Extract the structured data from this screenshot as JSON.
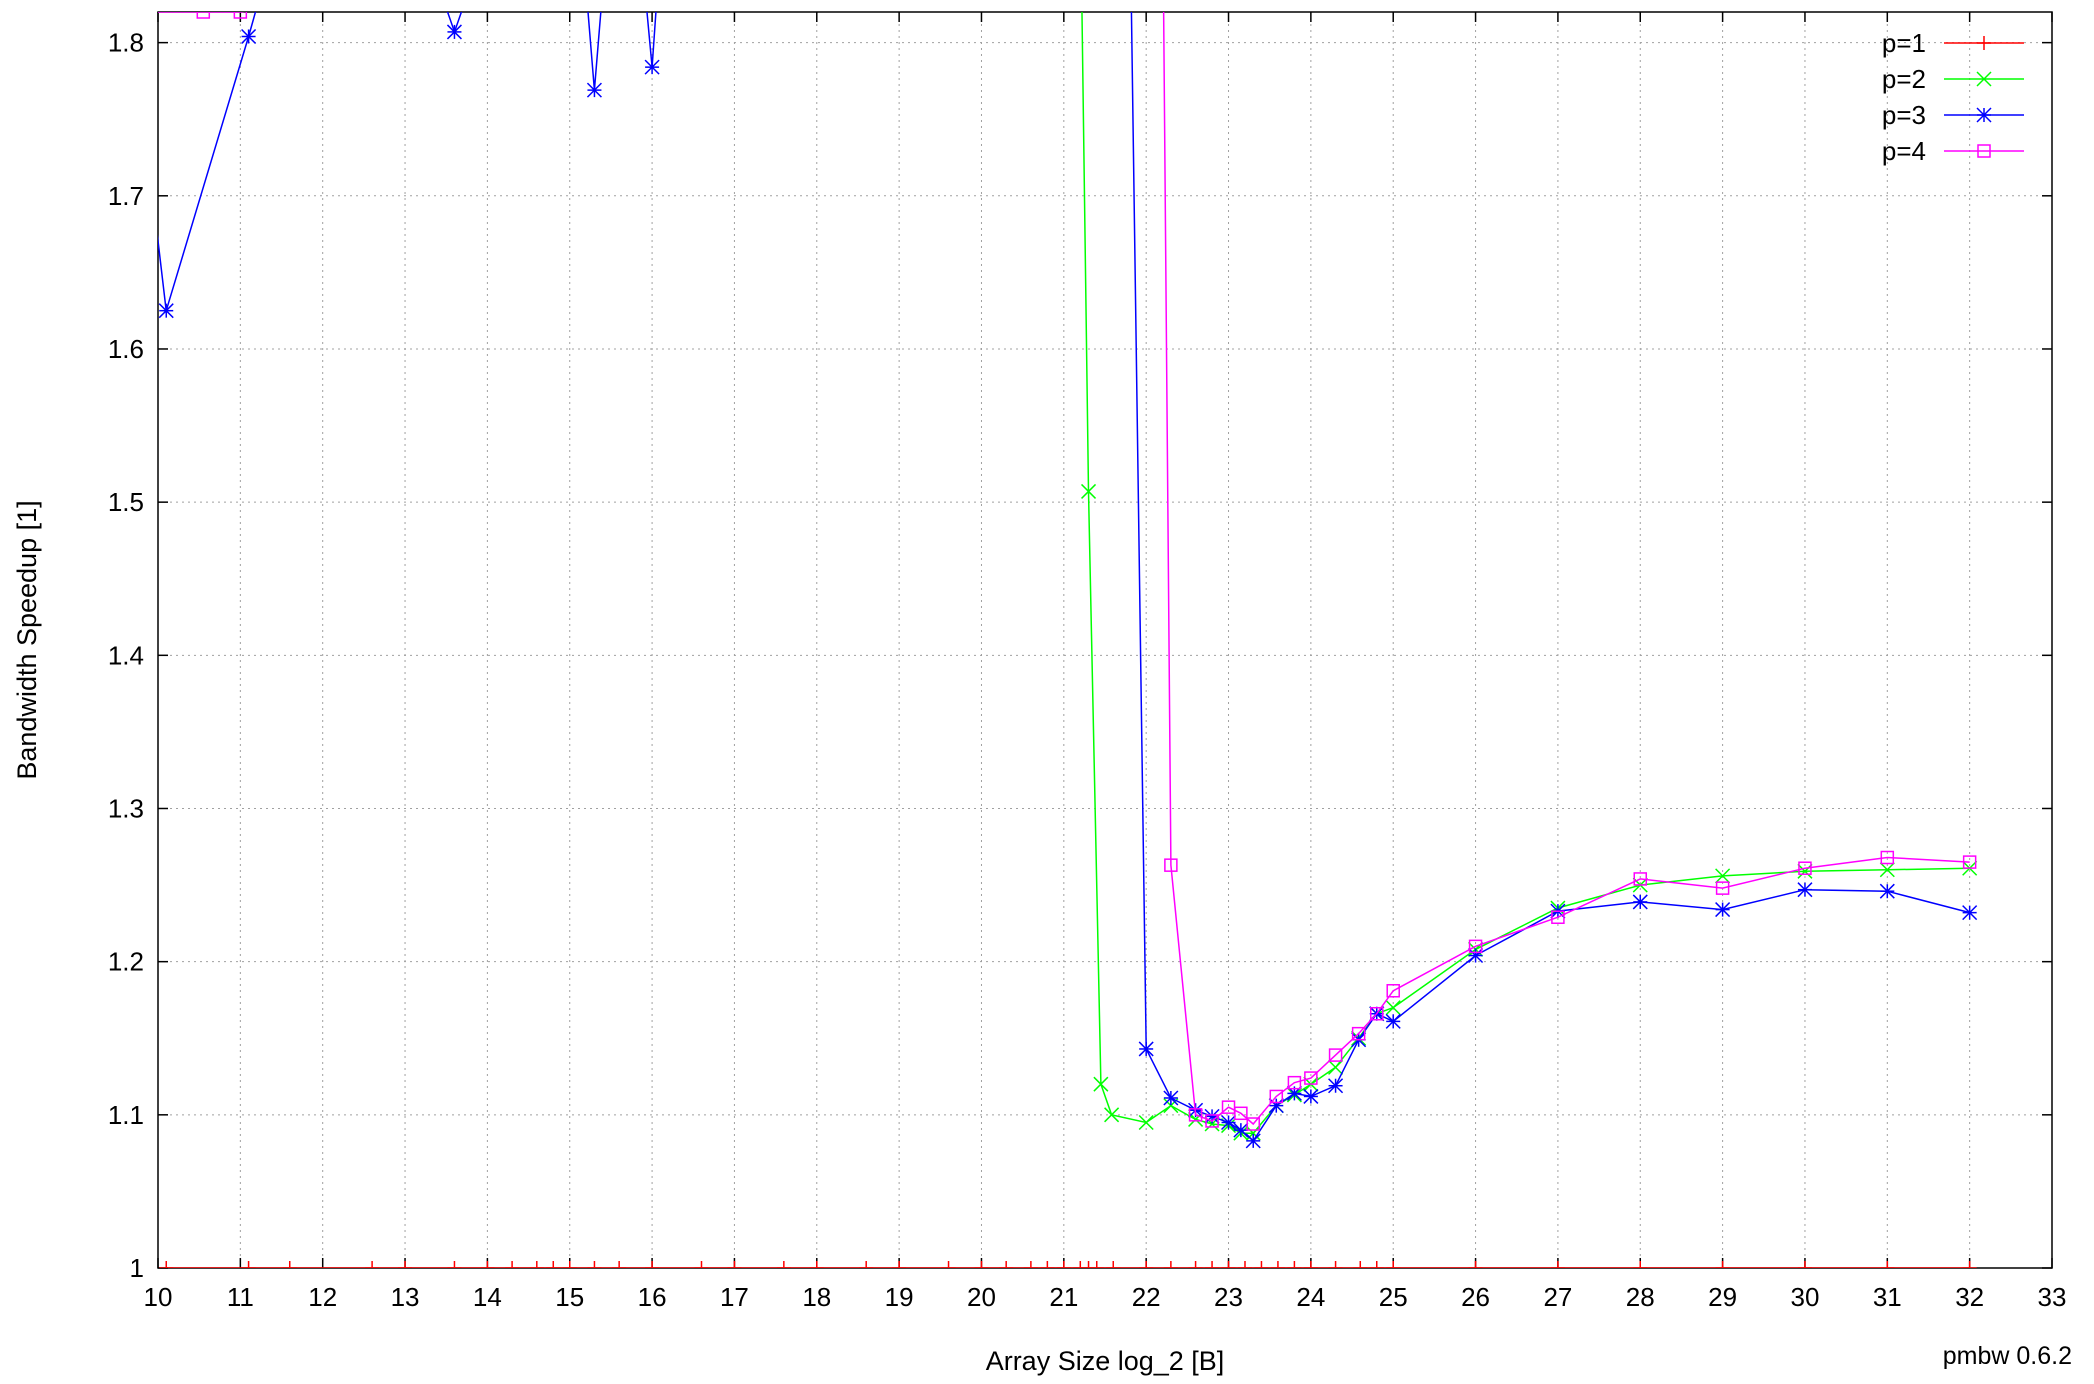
{
  "chart_data": {
    "type": "line",
    "title": "",
    "xlabel": "Array Size log_2 [B]",
    "ylabel": "Bandwidth Speedup [1]",
    "xlim": [
      10,
      33
    ],
    "ylim": [
      1,
      1.82
    ],
    "grid": true,
    "legend_placement": "top-right",
    "x_ticks": [
      10,
      11,
      12,
      13,
      14,
      15,
      16,
      17,
      18,
      19,
      20,
      21,
      22,
      23,
      24,
      25,
      26,
      27,
      28,
      29,
      30,
      31,
      32,
      33
    ],
    "y_ticks": [
      1,
      1.1,
      1.2,
      1.3,
      1.4,
      1.5,
      1.6,
      1.7,
      1.8
    ],
    "series": [
      {
        "name": "p=1",
        "color": "#ff0000",
        "marker": "plus",
        "x": [
          10.1,
          11.1,
          11.6,
          12.6,
          13.0,
          13.6,
          14.0,
          14.3,
          14.6,
          14.8,
          15.0,
          15.3,
          15.6,
          16.0,
          16.6,
          17.0,
          17.6,
          18.0,
          18.6,
          19.0,
          19.6,
          20.0,
          20.3,
          20.6,
          20.8,
          21.0,
          21.2,
          21.3,
          21.4,
          21.6,
          22.0,
          22.3,
          22.6,
          22.8,
          23.0,
          23.2,
          23.4,
          23.6,
          23.8,
          24.0,
          24.3,
          24.6,
          24.8,
          25.0,
          26.0,
          27.0,
          28.0,
          29.0,
          30.0,
          31.0,
          32.0
        ],
        "y": [
          1,
          1,
          1,
          1,
          1,
          1,
          1,
          1,
          1,
          1,
          1,
          1,
          1,
          1,
          1,
          1,
          1,
          1,
          1,
          1,
          1,
          1,
          1,
          1,
          1,
          1,
          1,
          1,
          1,
          1,
          1,
          1,
          1,
          1,
          1,
          1,
          1,
          1,
          1,
          1,
          1,
          1,
          1,
          1,
          1,
          1,
          1,
          1,
          1,
          1,
          1
        ]
      },
      {
        "name": "p=2",
        "color": "#00ff00",
        "marker": "cross",
        "x": [
          21.2,
          21.3,
          21.45,
          21.58,
          22.0,
          22.3,
          22.6,
          22.8,
          23.0,
          23.15,
          23.3,
          23.58,
          23.8,
          24.0,
          24.3,
          24.58,
          24.8,
          25.0,
          26.0,
          27.0,
          28.0,
          29.0,
          30.0,
          31.0,
          32.0
        ],
        "y": [
          1.9,
          1.507,
          1.12,
          1.1,
          1.095,
          1.106,
          1.097,
          1.094,
          1.093,
          1.088,
          1.088,
          1.106,
          1.113,
          1.12,
          1.131,
          1.15,
          1.166,
          1.17,
          1.208,
          1.235,
          1.25,
          1.256,
          1.259,
          1.26,
          1.261
        ]
      },
      {
        "name": "p=3",
        "color": "#0000ff",
        "marker": "star",
        "x": [
          9.5,
          10.1,
          11.1,
          11.6,
          13.0,
          13.6,
          14.2,
          15.1,
          15.3,
          15.5,
          15.8,
          16.0,
          16.15,
          21.8,
          22.0,
          22.3,
          22.6,
          22.8,
          23.0,
          23.15,
          23.3,
          23.58,
          23.8,
          24.0,
          24.3,
          24.58,
          24.8,
          25.0,
          26.0,
          27.0,
          28.0,
          29.0,
          30.0,
          31.0,
          32.0
        ],
        "y": [
          1.9,
          1.625,
          1.804,
          1.9,
          1.9,
          1.807,
          1.9,
          1.9,
          1.769,
          1.9,
          1.9,
          1.784,
          1.9,
          1.9,
          1.143,
          1.111,
          1.103,
          1.099,
          1.095,
          1.09,
          1.083,
          1.106,
          1.114,
          1.112,
          1.119,
          1.149,
          1.166,
          1.161,
          1.204,
          1.233,
          1.239,
          1.234,
          1.247,
          1.246,
          1.232
        ]
      },
      {
        "name": "p=4",
        "color": "#ff00ff",
        "marker": "box",
        "x": [
          9.5,
          10.55,
          11.0,
          22.2,
          22.3,
          22.6,
          22.8,
          23.0,
          23.15,
          23.3,
          23.58,
          23.8,
          24.0,
          24.3,
          24.58,
          24.8,
          25.0,
          26.0,
          27.0,
          28.0,
          29.0,
          30.0,
          31.0,
          32.0
        ],
        "y": [
          1.82,
          1.82,
          1.82,
          1.9,
          1.263,
          1.1,
          1.096,
          1.105,
          1.101,
          1.094,
          1.112,
          1.121,
          1.124,
          1.139,
          1.153,
          1.166,
          1.181,
          1.21,
          1.229,
          1.254,
          1.248,
          1.261,
          1.268,
          1.265
        ]
      }
    ]
  },
  "footer": {
    "version": "pmbw 0.6.2"
  }
}
